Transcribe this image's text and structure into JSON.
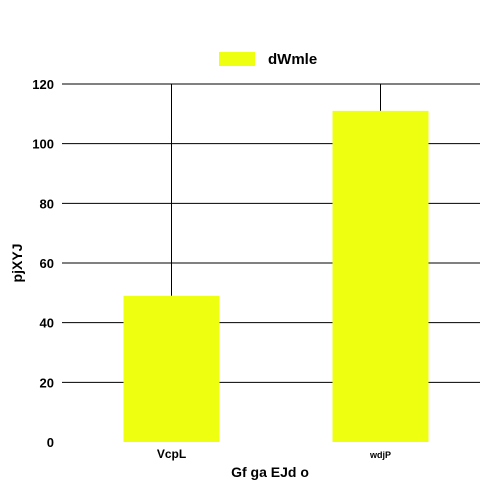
{
  "chart_data": {
    "type": "bar",
    "categories": [
      "VcpL",
      "wdjP"
    ],
    "series": [
      {
        "name": "dWmle",
        "values": [
          49,
          111
        ]
      }
    ],
    "error_bar_tops": [
      120,
      120
    ],
    "xlabel": "Gf ga EJd o",
    "ylabel": "pjXYJ",
    "ylim": [
      0,
      120
    ],
    "yticks": [
      0,
      20,
      40,
      60,
      80,
      100,
      120
    ],
    "grid": true,
    "legend": "top-center",
    "bar_color": "#eeff10"
  }
}
